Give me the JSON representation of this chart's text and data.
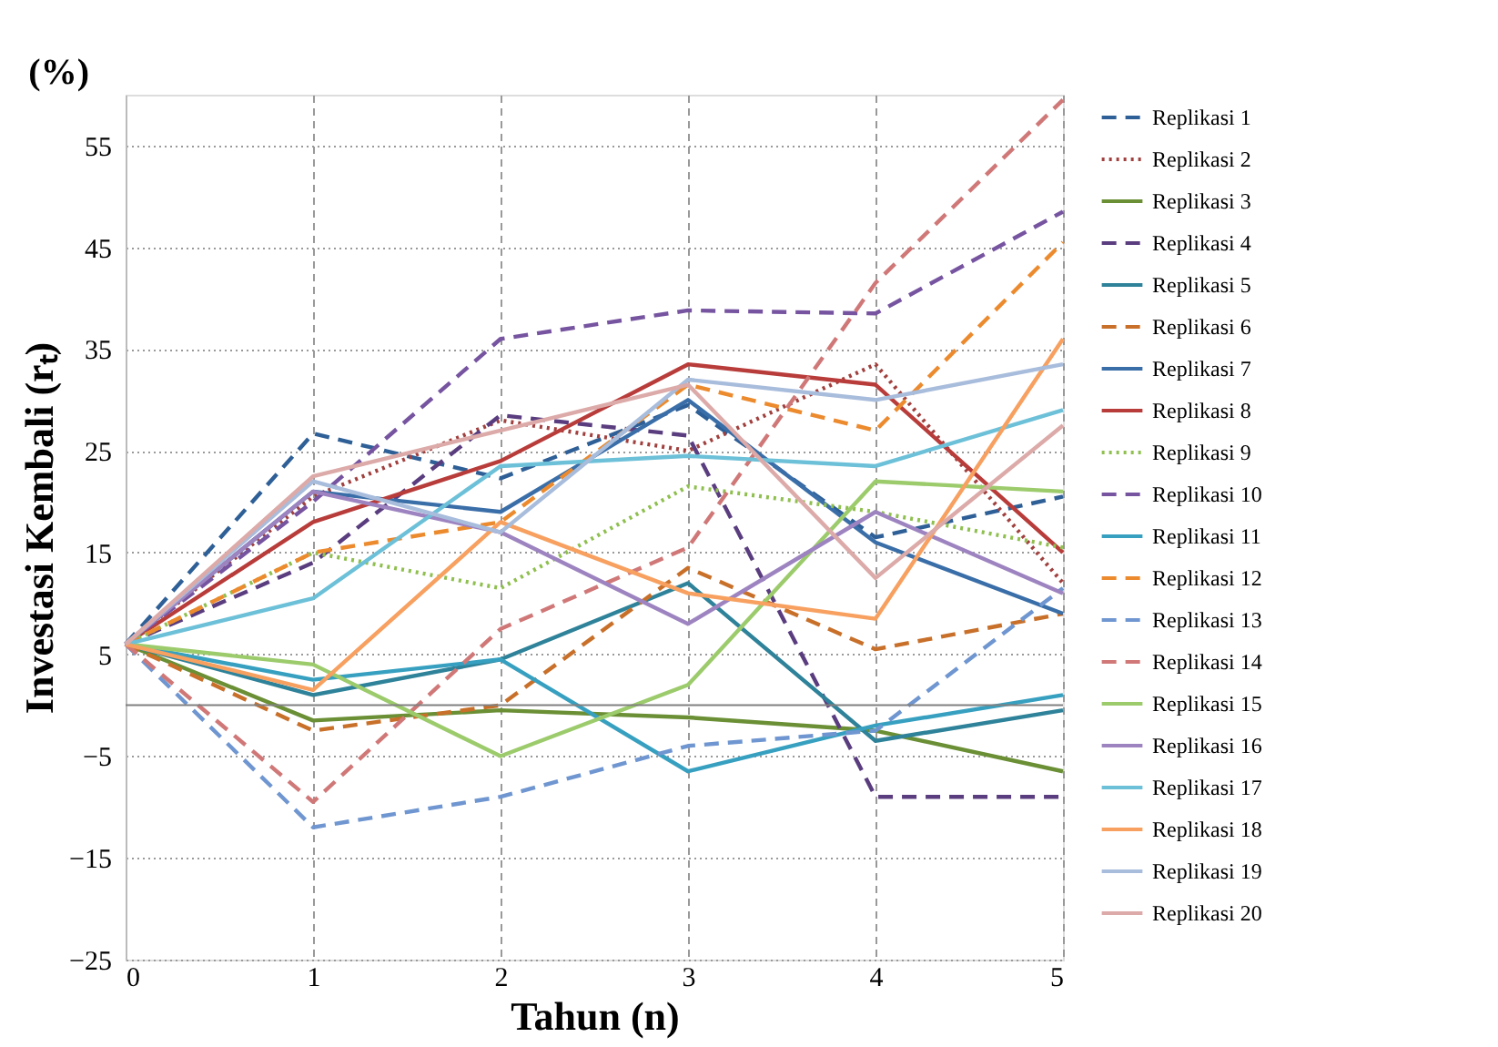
{
  "chart_data": {
    "type": "line",
    "xlabel": "Tahun (n)",
    "ylabel": "Investasi Kembali (rₜ)",
    "annotations": [
      "(%)"
    ],
    "x": [
      0,
      1,
      2,
      3,
      4,
      5
    ],
    "xlim": [
      0,
      5
    ],
    "xticks": [
      0,
      1,
      2,
      3,
      4,
      5
    ],
    "ylim": [
      -25,
      60
    ],
    "yticks": [
      -25,
      -15,
      -5,
      5,
      15,
      25,
      35,
      45,
      55
    ],
    "grid": true,
    "legend": "right",
    "marker": "none",
    "ref_lines": [
      {
        "axis": "y",
        "value": 0,
        "color": "#808080"
      }
    ],
    "series": [
      {
        "name": "Replikasi 1",
        "color": "#2e5f96",
        "line_style": "dashed",
        "values": [
          6,
          26.7,
          22.3,
          29.5,
          16.5,
          20.5
        ]
      },
      {
        "name": "Replikasi 2",
        "color": "#a0403e",
        "line_style": "dotted",
        "values": [
          6,
          20.5,
          28,
          25,
          33.5,
          12
        ]
      },
      {
        "name": "Replikasi 3",
        "color": "#6a8f35",
        "line_style": "solid",
        "values": [
          6,
          -1.5,
          -0.5,
          -1.2,
          -2.5,
          -6.5
        ]
      },
      {
        "name": "Replikasi 4",
        "color": "#5a3d7f",
        "line_style": "dashed",
        "values": [
          6,
          14,
          28.5,
          26.5,
          -9,
          -9
        ]
      },
      {
        "name": "Replikasi 5",
        "color": "#2e8299",
        "line_style": "solid",
        "values": [
          6,
          1,
          4.5,
          12,
          -3.5,
          -0.5
        ]
      },
      {
        "name": "Replikasi 6",
        "color": "#c8702a",
        "line_style": "dashed",
        "values": [
          6,
          -2.5,
          0,
          13.5,
          5.5,
          9
        ]
      },
      {
        "name": "Replikasi 7",
        "color": "#3a6ea8",
        "line_style": "solid",
        "values": [
          6,
          21,
          19,
          30,
          16,
          9
        ]
      },
      {
        "name": "Replikasi 8",
        "color": "#b83c3a",
        "line_style": "solid",
        "values": [
          6,
          18,
          24,
          33.5,
          31.5,
          15
        ]
      },
      {
        "name": "Replikasi 9",
        "color": "#8fbf4f",
        "line_style": "dotted",
        "values": [
          6,
          15,
          11.5,
          21.5,
          19,
          15.5
        ]
      },
      {
        "name": "Replikasi 10",
        "color": "#7654a0",
        "line_style": "dashed",
        "values": [
          6,
          20,
          36,
          38.8,
          38.5,
          48.5
        ]
      },
      {
        "name": "Replikasi 11",
        "color": "#37a0c0",
        "line_style": "solid",
        "values": [
          6,
          2.5,
          4.5,
          -6.5,
          -2,
          1
        ]
      },
      {
        "name": "Replikasi 12",
        "color": "#ec8a2e",
        "line_style": "dashed",
        "values": [
          6,
          15,
          18,
          31.5,
          27,
          45.5
        ]
      },
      {
        "name": "Replikasi 13",
        "color": "#6f96d0",
        "line_style": "dashed",
        "values": [
          6,
          -12,
          -9,
          -4,
          -2.5,
          11.5
        ]
      },
      {
        "name": "Replikasi 14",
        "color": "#d07878",
        "line_style": "dashed",
        "values": [
          6,
          -9.5,
          7.5,
          15.5,
          41.5,
          59.5
        ]
      },
      {
        "name": "Replikasi 15",
        "color": "#9ccb6c",
        "line_style": "solid",
        "values": [
          6,
          4,
          -5,
          2,
          22,
          21
        ]
      },
      {
        "name": "Replikasi 16",
        "color": "#9d84c0",
        "line_style": "solid",
        "values": [
          6,
          21,
          17,
          8,
          19,
          11
        ]
      },
      {
        "name": "Replikasi 17",
        "color": "#6cc0d8",
        "line_style": "solid",
        "values": [
          6,
          10.5,
          23.5,
          24.5,
          23.5,
          29
        ]
      },
      {
        "name": "Replikasi 18",
        "color": "#f7a060",
        "line_style": "solid",
        "values": [
          6,
          1.5,
          18,
          11,
          8.5,
          36
        ]
      },
      {
        "name": "Replikasi 19",
        "color": "#a8bcdc",
        "line_style": "solid",
        "values": [
          6,
          22,
          17,
          32,
          30,
          33.5
        ]
      },
      {
        "name": "Replikasi 20",
        "color": "#dcaaa8",
        "line_style": "solid",
        "values": [
          6,
          22.5,
          27,
          31.5,
          12.5,
          27.5
        ]
      }
    ]
  }
}
